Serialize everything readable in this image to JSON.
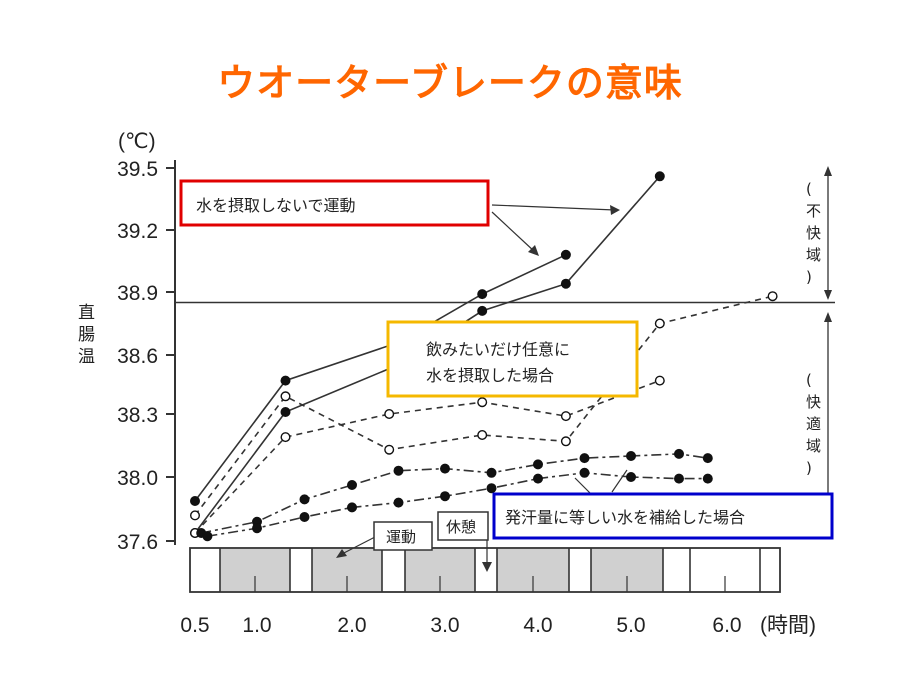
{
  "slide": {
    "title": "ウオーターブレークの意味"
  },
  "colors": {
    "title": "#ff6600",
    "red_box": "#e00000",
    "yellow_box": "#f5b800",
    "blue_box": "#0000cc"
  },
  "chart_data": {
    "type": "line",
    "y_unit": "(℃)",
    "ylabel": "直腸温",
    "x_unit": "(時間)",
    "x_ticks": [
      "0.5",
      "1.0",
      "2.0",
      "3.0",
      "4.0",
      "5.0",
      "6.0"
    ],
    "x_tick_values": [
      0.5,
      1.0,
      2.0,
      3.0,
      4.0,
      5.0,
      6.0
    ],
    "y_ticks": [
      "37.6",
      "38.0",
      "38.3",
      "38.6",
      "38.9",
      "39.2",
      "39.5"
    ],
    "y_tick_values": [
      37.6,
      38.0,
      38.3,
      38.6,
      38.9,
      39.2,
      39.5
    ],
    "y_zone_scale": [
      [
        37.6,
        541
      ],
      [
        38.0,
        477
      ],
      [
        38.3,
        414
      ],
      [
        38.6,
        355
      ],
      [
        38.9,
        292
      ],
      [
        39.2,
        230
      ],
      [
        39.5,
        168
      ]
    ],
    "ylim": [
      37.6,
      39.5
    ],
    "xlim": [
      0.5,
      6.8
    ],
    "reference_line_y": 38.85,
    "zones": [
      {
        "label": "(不快域)",
        "from": 38.85,
        "to": 39.5
      },
      {
        "label": "(快適域)",
        "from": 37.6,
        "to": 38.85
      }
    ],
    "series": [
      {
        "marker": "filled",
        "style": "solid",
        "points": [
          [
            0.5,
            37.85
          ],
          [
            1.3,
            38.47
          ],
          [
            2.5,
            38.66
          ],
          [
            3.4,
            38.89
          ],
          [
            4.3,
            39.08
          ]
        ]
      },
      {
        "marker": "filled",
        "style": "solid",
        "points": [
          [
            0.5,
            37.65
          ],
          [
            1.3,
            38.31
          ],
          [
            2.5,
            38.55
          ],
          [
            3.4,
            38.81
          ],
          [
            4.3,
            38.94
          ],
          [
            5.3,
            39.46
          ]
        ]
      },
      {
        "marker": "open",
        "style": "dashed",
        "points": [
          [
            0.5,
            37.76
          ],
          [
            1.3,
            38.39
          ],
          [
            2.4,
            38.13
          ],
          [
            3.4,
            38.2
          ],
          [
            4.3,
            38.17
          ],
          [
            5.3,
            38.75
          ],
          [
            6.5,
            38.88
          ]
        ]
      },
      {
        "marker": "open",
        "style": "dashed",
        "points": [
          [
            0.5,
            37.65
          ],
          [
            1.3,
            38.19
          ],
          [
            2.4,
            38.3
          ],
          [
            3.4,
            38.36
          ],
          [
            4.3,
            38.29
          ],
          [
            5.3,
            38.47
          ]
        ]
      },
      {
        "marker": "filled",
        "style": "dash-dot",
        "points": [
          [
            0.55,
            37.65
          ],
          [
            1.0,
            37.72
          ],
          [
            1.5,
            37.86
          ],
          [
            2.0,
            37.95
          ],
          [
            2.5,
            38.03
          ],
          [
            3.0,
            38.04
          ],
          [
            3.5,
            38.02
          ],
          [
            4.0,
            38.06
          ],
          [
            4.5,
            38.09
          ],
          [
            5.0,
            38.1
          ],
          [
            5.5,
            38.11
          ],
          [
            5.8,
            38.09
          ]
        ]
      },
      {
        "marker": "filled",
        "style": "dash-dot",
        "points": [
          [
            0.6,
            37.63
          ],
          [
            1.0,
            37.68
          ],
          [
            1.5,
            37.75
          ],
          [
            2.0,
            37.81
          ],
          [
            2.5,
            37.84
          ],
          [
            3.0,
            37.88
          ],
          [
            3.5,
            37.93
          ],
          [
            4.0,
            37.99
          ],
          [
            4.5,
            38.02
          ],
          [
            5.0,
            38.0
          ],
          [
            5.5,
            37.99
          ],
          [
            5.8,
            37.99
          ]
        ]
      }
    ],
    "annotations": [
      {
        "text": "水を摂取しないで運動",
        "box": "red"
      },
      {
        "lines": [
          "飲みたいだけ任意に",
          "水を摂取した場合"
        ],
        "box": "yellow"
      },
      {
        "text": "発汗量に等しい水を補給した場合",
        "box": "blue"
      }
    ],
    "phase_labels": {
      "exercise": "運動",
      "rest": "休憩"
    },
    "grid": false,
    "legend": "none"
  }
}
